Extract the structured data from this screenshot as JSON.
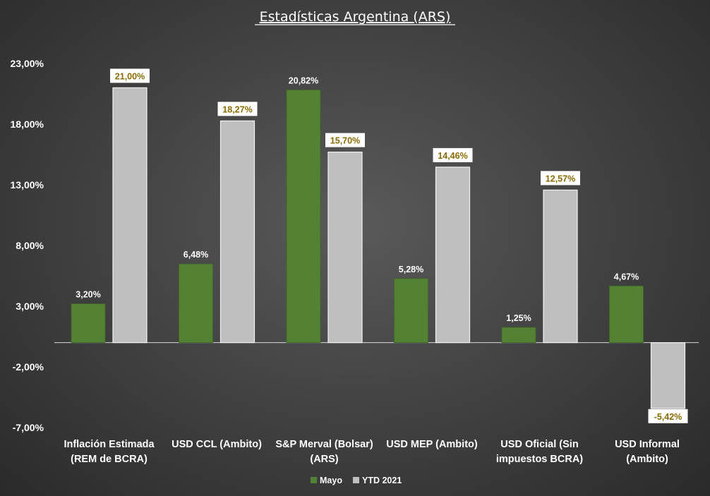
{
  "chart_data": {
    "type": "bar",
    "title": "Estadísticas  Argentina  (ARS)",
    "categories": [
      [
        "Inflación Estimada",
        "(REM de BCRA)"
      ],
      [
        "USD CCL (Ambito)"
      ],
      [
        "S&P Merval (Bolsar)",
        "(ARS)"
      ],
      [
        "USD MEP (Ambito)"
      ],
      [
        "USD Oficial (Sin",
        "impuestos BCRA)"
      ],
      [
        "USD Informal",
        "(Ambito)"
      ]
    ],
    "series": [
      {
        "name": "Mayo",
        "color": "#548235",
        "values": [
          3.2,
          6.48,
          20.82,
          5.28,
          1.25,
          4.67
        ],
        "labels": [
          "3,20%",
          "6,48%",
          "20,82%",
          "5,28%",
          "1,25%",
          "4,67%"
        ]
      },
      {
        "name": "YTD 2021",
        "color": "#bfbfbf",
        "values": [
          21.0,
          18.27,
          15.7,
          14.46,
          12.57,
          -5.42
        ],
        "labels": [
          "21,00%",
          "18,27%",
          "15,70%",
          "14,46%",
          "12,57%",
          "-5,42%"
        ]
      }
    ],
    "yticks": [
      23,
      18,
      13,
      8,
      3,
      -2,
      -7
    ],
    "ytick_labels": [
      "23,00%",
      "18,00%",
      "13,00%",
      "8,00%",
      "3,00%",
      "-2,00%",
      "-7,00%"
    ],
    "ylim": [
      -7,
      23
    ],
    "legend_position": "bottom",
    "grid": false
  }
}
